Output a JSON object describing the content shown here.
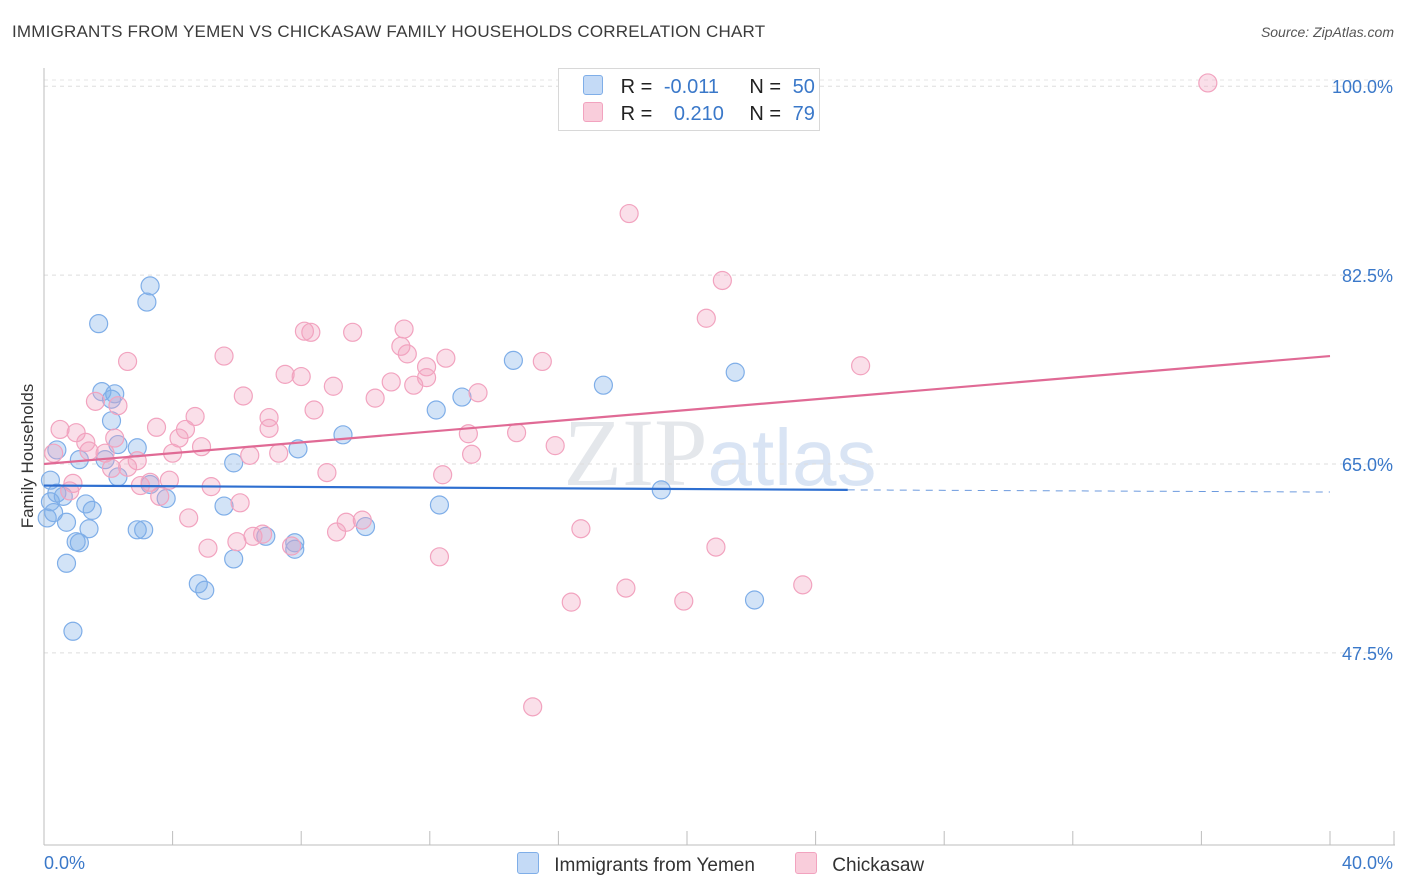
{
  "chart_data": {
    "type": "scatter",
    "title": "IMMIGRANTS FROM YEMEN VS CHICKASAW FAMILY HOUSEHOLDS CORRELATION CHART",
    "source": "Source: ZipAtlas.com",
    "xlabel": "",
    "ylabel": "Family Households",
    "xlim": [
      0,
      40
    ],
    "ylim": [
      29.7,
      101.5
    ],
    "x_tick_labels": [
      "0.0%",
      "40.0%"
    ],
    "y_ticks": [
      {
        "value": 100,
        "label": "100.0%"
      },
      {
        "value": 82.5,
        "label": "82.5%"
      },
      {
        "value": 65,
        "label": "65.0%"
      },
      {
        "value": 47.5,
        "label": "47.5%"
      }
    ],
    "watermark": "ZIPatlas",
    "legend": {
      "rows": [
        {
          "r_label": "R =",
          "r_value": "-0.011",
          "n_label": "N =",
          "n_value": "50"
        },
        {
          "r_label": "R =",
          "r_value": "0.210",
          "n_label": "N =",
          "n_value": "79"
        }
      ]
    },
    "series": [
      {
        "name": "Immigrants from Yemen",
        "color": "#7faee8",
        "line_color": "#2e6fd0",
        "trend": {
          "x0": 0.0,
          "y0": 63.0,
          "x1": 25.0,
          "y1": 62.6,
          "x_dash_end": 40.0,
          "y_dash_end": 62.4
        },
        "points": [
          [
            0.1,
            60.0
          ],
          [
            0.2,
            61.5
          ],
          [
            0.2,
            63.5
          ],
          [
            0.4,
            66.3
          ],
          [
            0.4,
            62.3
          ],
          [
            0.6,
            62.0
          ],
          [
            0.7,
            59.6
          ],
          [
            0.7,
            55.8
          ],
          [
            0.9,
            49.5
          ],
          [
            1.0,
            57.8
          ],
          [
            1.1,
            65.4
          ],
          [
            1.1,
            57.7
          ],
          [
            1.3,
            61.3
          ],
          [
            1.4,
            59.0
          ],
          [
            1.5,
            60.7
          ],
          [
            1.7,
            78.0
          ],
          [
            1.8,
            71.7
          ],
          [
            1.9,
            65.4
          ],
          [
            2.1,
            71.0
          ],
          [
            2.1,
            69.0
          ],
          [
            2.2,
            71.5
          ],
          [
            2.3,
            63.8
          ],
          [
            2.3,
            66.8
          ],
          [
            2.9,
            66.5
          ],
          [
            2.9,
            58.9
          ],
          [
            3.1,
            58.9
          ],
          [
            3.2,
            80.0
          ],
          [
            3.3,
            81.5
          ],
          [
            3.3,
            63.1
          ],
          [
            3.8,
            61.8
          ],
          [
            4.8,
            53.9
          ],
          [
            5.0,
            53.3
          ],
          [
            5.6,
            61.1
          ],
          [
            5.9,
            65.1
          ],
          [
            5.9,
            56.2
          ],
          [
            6.9,
            58.3
          ],
          [
            7.8,
            57.1
          ],
          [
            7.8,
            57.7
          ],
          [
            7.9,
            66.4
          ],
          [
            9.3,
            67.7
          ],
          [
            10.0,
            59.2
          ],
          [
            12.2,
            70.0
          ],
          [
            12.3,
            61.2
          ],
          [
            13.0,
            71.2
          ],
          [
            17.4,
            72.3
          ],
          [
            19.2,
            62.6
          ],
          [
            22.1,
            52.4
          ],
          [
            21.5,
            73.5
          ],
          [
            14.6,
            74.6
          ],
          [
            0.3,
            60.5
          ]
        ]
      },
      {
        "name": "Chickasaw",
        "color": "#f2a3bf",
        "line_color": "#e06a95",
        "trend": {
          "x0": 0.0,
          "y0": 65.0,
          "x1": 40.0,
          "y1": 75.0
        },
        "points": [
          [
            0.3,
            66.0
          ],
          [
            0.5,
            68.2
          ],
          [
            0.8,
            62.5
          ],
          [
            0.9,
            63.2
          ],
          [
            1.0,
            67.9
          ],
          [
            1.3,
            67.0
          ],
          [
            1.4,
            66.2
          ],
          [
            1.6,
            70.8
          ],
          [
            1.9,
            66.0
          ],
          [
            2.1,
            64.6
          ],
          [
            2.2,
            67.4
          ],
          [
            2.3,
            70.4
          ],
          [
            2.6,
            64.7
          ],
          [
            2.6,
            74.5
          ],
          [
            2.9,
            65.3
          ],
          [
            3.0,
            63.0
          ],
          [
            3.3,
            63.3
          ],
          [
            3.5,
            68.4
          ],
          [
            3.6,
            62.0
          ],
          [
            3.9,
            63.5
          ],
          [
            4.0,
            66.0
          ],
          [
            4.2,
            67.4
          ],
          [
            4.4,
            68.2
          ],
          [
            4.5,
            60.0
          ],
          [
            4.7,
            69.4
          ],
          [
            4.9,
            66.6
          ],
          [
            5.1,
            57.2
          ],
          [
            5.2,
            62.9
          ],
          [
            5.6,
            75.0
          ],
          [
            6.0,
            57.8
          ],
          [
            6.1,
            61.4
          ],
          [
            6.2,
            71.3
          ],
          [
            6.4,
            65.8
          ],
          [
            6.5,
            58.3
          ],
          [
            6.8,
            58.5
          ],
          [
            7.0,
            68.3
          ],
          [
            7.0,
            69.3
          ],
          [
            7.3,
            66.0
          ],
          [
            7.5,
            73.3
          ],
          [
            7.7,
            57.4
          ],
          [
            8.0,
            73.1
          ],
          [
            8.1,
            77.3
          ],
          [
            8.3,
            77.2
          ],
          [
            8.4,
            70.0
          ],
          [
            8.8,
            64.2
          ],
          [
            9.0,
            72.2
          ],
          [
            9.1,
            58.7
          ],
          [
            9.4,
            59.6
          ],
          [
            9.6,
            77.2
          ],
          [
            9.9,
            59.8
          ],
          [
            10.3,
            71.1
          ],
          [
            10.8,
            72.6
          ],
          [
            11.1,
            75.9
          ],
          [
            11.2,
            77.5
          ],
          [
            11.3,
            75.2
          ],
          [
            11.5,
            72.3
          ],
          [
            11.9,
            73.0
          ],
          [
            11.9,
            74.0
          ],
          [
            12.3,
            56.4
          ],
          [
            12.4,
            64.0
          ],
          [
            12.5,
            74.8
          ],
          [
            13.2,
            67.8
          ],
          [
            13.3,
            65.9
          ],
          [
            13.5,
            71.6
          ],
          [
            14.7,
            67.9
          ],
          [
            15.2,
            42.5
          ],
          [
            15.5,
            74.5
          ],
          [
            15.9,
            66.7
          ],
          [
            16.4,
            52.2
          ],
          [
            16.7,
            59.0
          ],
          [
            18.1,
            53.5
          ],
          [
            18.2,
            88.2
          ],
          [
            19.9,
            52.3
          ],
          [
            20.6,
            78.5
          ],
          [
            20.9,
            57.3
          ],
          [
            21.1,
            82.0
          ],
          [
            23.6,
            53.8
          ],
          [
            25.4,
            74.1
          ],
          [
            36.2,
            100.3
          ]
        ]
      }
    ]
  }
}
